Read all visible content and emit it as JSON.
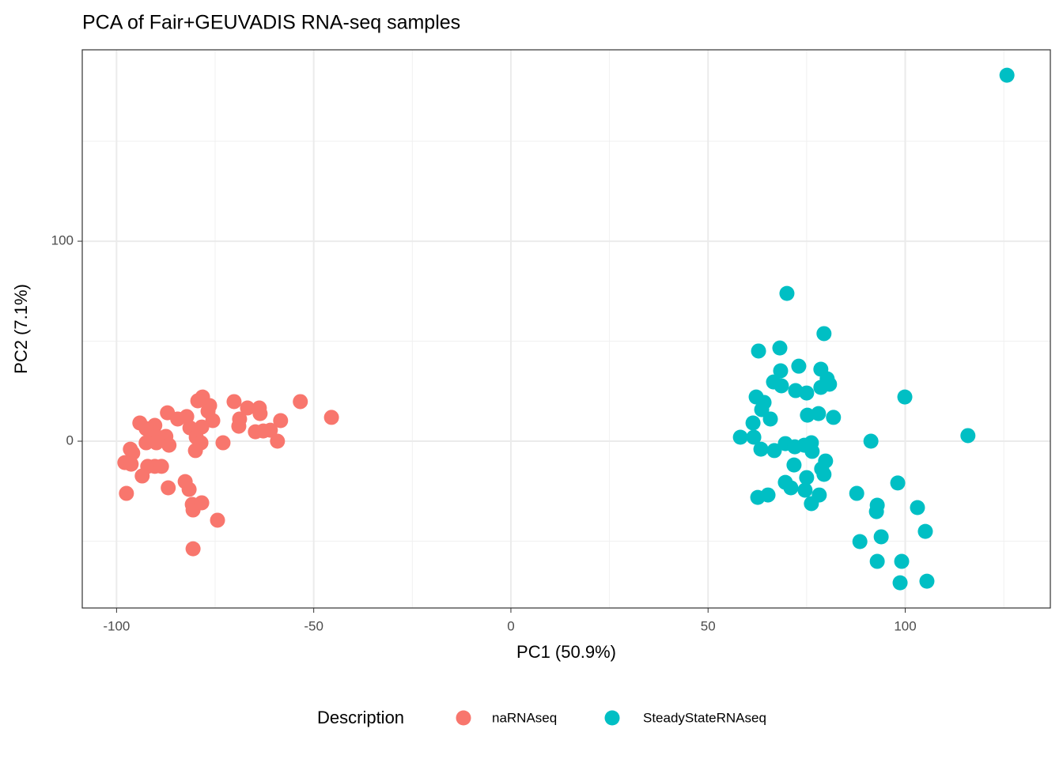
{
  "chart_data": {
    "type": "scatter",
    "title": "PCA of Fair+GEUVADIS RNA-seq samples",
    "x_label": "PC1 (50.9%)",
    "y_label": "PC2 (7.1%)",
    "legend_title": "Description",
    "legend_position": "bottom",
    "grid": true,
    "xlim": [
      -108.7,
      136.8
    ],
    "ylim": [
      -83.4,
      195.7
    ],
    "xticks": [
      -100,
      -50,
      0,
      50,
      100
    ],
    "yticks": [
      0,
      100
    ],
    "x_minor_grid": [
      -75,
      -25,
      25,
      75,
      125
    ],
    "y_minor_grid": [
      -50,
      50,
      150
    ],
    "series": [
      {
        "name": "naRNAseq",
        "color": "#f8766d",
        "x": [
          -53.4,
          -45.5,
          -70.2,
          -66.8,
          -63.8,
          -63.6,
          -68.8,
          -69.0,
          -64.8,
          -62.8,
          -61.0,
          -58.4,
          -59.2,
          -78.2,
          -79.4,
          -76.4,
          -76.8,
          -75.6,
          -78.4,
          -82.2,
          -81.4,
          -79.8,
          -78.6,
          -80.0,
          -73.0,
          -87.1,
          -84.5,
          -90.3,
          -90.5,
          -87.5,
          -89.9,
          -86.7,
          -92.5,
          -94.1,
          -92.5,
          -96.5,
          -95.9,
          -97.9,
          -96.3,
          -92.1,
          -90.3,
          -88.6,
          -93.5,
          -97.5,
          -86.9,
          -82.6,
          -81.6,
          -80.8,
          -80.6,
          -78.4,
          -74.4,
          -80.6
        ],
        "values": [
          19.8,
          11.9,
          19.8,
          16.6,
          16.6,
          13.8,
          11.1,
          7.5,
          4.7,
          5.1,
          5.5,
          10.3,
          0,
          22.1,
          20.2,
          17.8,
          15.0,
          10.3,
          7.1,
          12.3,
          6.7,
          2.0,
          -0.8,
          -4.7,
          -0.8,
          14.2,
          11.1,
          7.9,
          4.0,
          2.4,
          -0.8,
          -2.0,
          -0.8,
          9.1,
          6.3,
          -4.0,
          -5.9,
          -10.7,
          -11.5,
          -12.6,
          -12.6,
          -12.6,
          -17.4,
          -26.1,
          -23.3,
          -20.2,
          -24.1,
          -31.6,
          -34.4,
          -30.8,
          -39.5,
          -53.8
        ]
      },
      {
        "name": "SteadyStateRNAseq",
        "color": "#00bfc4",
        "x": [
          125.8,
          70.0,
          79.4,
          62.8,
          68.2,
          73.0,
          68.4,
          78.6,
          80.2,
          80.8,
          78.6,
          66.6,
          68.6,
          72.2,
          75.0,
          62.2,
          64.2,
          63.6,
          65.8,
          61.4,
          75.2,
          78.0,
          81.8,
          99.9,
          58.2,
          61.6,
          63.4,
          66.8,
          69.6,
          72.0,
          74.4,
          76.2,
          76.4,
          91.3,
          115.9,
          71.8,
          79.8,
          78.8,
          79.4,
          69.6,
          75.0,
          71.0,
          74.6,
          78.2,
          62.6,
          65.2,
          76.2,
          87.7,
          98.1,
          92.9,
          92.7,
          103.1,
          105.1,
          93.9,
          88.5,
          92.9,
          99.1,
          98.7,
          105.5
        ],
        "values": [
          183.0,
          73.9,
          53.8,
          45.1,
          46.6,
          37.5,
          35.2,
          36.0,
          31.2,
          28.5,
          26.9,
          29.6,
          27.7,
          25.3,
          24.1,
          22.1,
          19.4,
          15.8,
          11.1,
          9.1,
          13.0,
          13.8,
          11.9,
          22.1,
          2.0,
          2.0,
          -4.0,
          -4.7,
          -1.2,
          -2.8,
          -2.0,
          -0.8,
          -5.1,
          0,
          2.8,
          -11.9,
          -9.9,
          -13.8,
          -16.6,
          -20.6,
          -18.2,
          -23.3,
          -24.5,
          -26.9,
          -28.1,
          -26.9,
          -31.2,
          -26.1,
          -20.9,
          -32.0,
          -35.2,
          -33.2,
          -45.1,
          -47.8,
          -50.2,
          -60.1,
          -60.1,
          -70.8,
          -70.0
        ]
      }
    ]
  }
}
